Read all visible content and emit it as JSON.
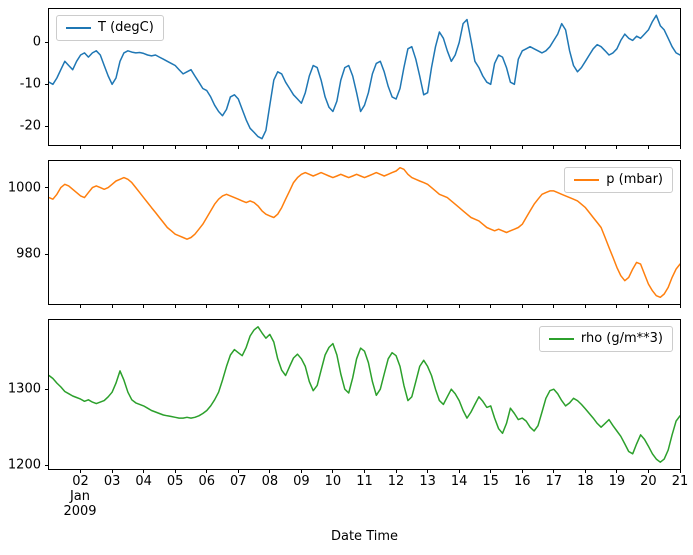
{
  "figure": {
    "xlabel": "Date Time",
    "background_color": "#ffffff",
    "spine_color": "#000000",
    "x_offset_label": [
      "Jan",
      "2009"
    ],
    "x_tick_positions": [
      1,
      2,
      3,
      4,
      5,
      6,
      7,
      8,
      9,
      10,
      11,
      12,
      13,
      14,
      15,
      16,
      17,
      18,
      19,
      20
    ],
    "x_tick_labels": [
      "02",
      "03",
      "04",
      "05",
      "06",
      "07",
      "08",
      "09",
      "10",
      "11",
      "12",
      "13",
      "14",
      "15",
      "16",
      "17",
      "18",
      "19",
      "20",
      "21"
    ]
  },
  "chart_data": [
    {
      "type": "line",
      "title": "",
      "xlim": [
        0,
        20
      ],
      "ylim": [
        -24.5,
        8
      ],
      "yticks": [
        0,
        -10,
        -20
      ],
      "grid": false,
      "legend_position": "upper left",
      "series": [
        {
          "name": "T (degC)",
          "color": "#1f77b4",
          "values": [
            -9.5,
            -10,
            -8.5,
            -6.5,
            -4.5,
            -5.5,
            -6.5,
            -4.5,
            -3,
            -2.5,
            -3.5,
            -2.5,
            -2,
            -3,
            -5.5,
            -8,
            -10,
            -8.5,
            -4.5,
            -2.5,
            -2,
            -2.3,
            -2.5,
            -2.4,
            -2.6,
            -3,
            -3.2,
            -3,
            -3.5,
            -4,
            -4.5,
            -5,
            -5.5,
            -6.5,
            -7.5,
            -7,
            -6.5,
            -8,
            -9.5,
            -11,
            -11.5,
            -13,
            -15,
            -16.5,
            -17.5,
            -16,
            -13,
            -12.5,
            -13.5,
            -16,
            -18.5,
            -20.5,
            -21.5,
            -22.5,
            -23,
            -21,
            -15,
            -9,
            -7,
            -7.5,
            -9.5,
            -11,
            -12.5,
            -13.5,
            -14.5,
            -12,
            -8,
            -5.5,
            -6,
            -9,
            -13,
            -15.5,
            -16.5,
            -14,
            -9,
            -6,
            -5.5,
            -8,
            -12,
            -16.5,
            -15,
            -12,
            -7.5,
            -5,
            -4.5,
            -7,
            -10.5,
            -13,
            -13.5,
            -11,
            -6,
            -1.5,
            -1,
            -4,
            -8,
            -12.5,
            -12,
            -6,
            -1,
            2.5,
            1,
            -2,
            -4.5,
            -3,
            0,
            4.5,
            5.5,
            0.5,
            -4.5,
            -6,
            -8,
            -9.5,
            -10,
            -5,
            -3,
            -3.5,
            -6,
            -9.5,
            -10,
            -4,
            -2,
            -1.5,
            -1,
            -1.5,
            -2,
            -2.5,
            -2,
            -1,
            0.5,
            2,
            4.5,
            3,
            -2,
            -5.5,
            -7,
            -6,
            -4.5,
            -3,
            -1.5,
            -0.5,
            -1,
            -2,
            -3,
            -2.5,
            -1.5,
            0.5,
            2,
            1,
            0.5,
            1.5,
            1,
            2,
            3,
            5,
            6.5,
            4,
            3,
            1,
            -1,
            -2.5,
            -3
          ]
        }
      ]
    },
    {
      "type": "line",
      "title": "",
      "xlim": [
        0,
        20
      ],
      "ylim": [
        965,
        1008
      ],
      "yticks": [
        1000,
        980
      ],
      "grid": false,
      "legend_position": "upper right",
      "series": [
        {
          "name": "p (mbar)",
          "color": "#ff7f0e",
          "values": [
            997,
            996.5,
            998,
            1000,
            1001,
            1000.5,
            999.5,
            998.5,
            997.5,
            997,
            998.5,
            1000,
            1000.5,
            1000,
            999.5,
            1000,
            1001,
            1002,
            1002.5,
            1003,
            1002.5,
            1001.5,
            1000,
            998.5,
            997,
            995.5,
            994,
            992.5,
            991,
            989.5,
            988,
            987,
            986,
            985.5,
            985,
            984.5,
            985,
            986,
            987.5,
            989,
            991,
            993,
            995,
            996.5,
            997.5,
            998,
            997.5,
            997,
            996.5,
            996,
            995.5,
            996,
            995.5,
            994.5,
            993,
            992,
            991.5,
            991,
            992,
            994,
            996.5,
            999,
            1001.5,
            1003,
            1004,
            1004.5,
            1004,
            1003.5,
            1004,
            1004.5,
            1004,
            1003.5,
            1003,
            1003.5,
            1004,
            1003.5,
            1003,
            1003.5,
            1004,
            1003.5,
            1003,
            1003.5,
            1004,
            1004.5,
            1004,
            1003.5,
            1004,
            1004.5,
            1005,
            1006,
            1005.5,
            1004,
            1003,
            1002.5,
            1002,
            1001.5,
            1001,
            1000,
            999,
            998,
            997.5,
            997,
            996,
            995,
            994,
            993,
            992,
            991,
            990.5,
            990,
            989,
            988,
            987.5,
            987,
            987.5,
            987,
            986.5,
            987,
            987.5,
            988,
            989,
            991,
            993,
            995,
            996.5,
            998,
            998.5,
            999,
            999,
            998.5,
            998,
            997.5,
            997,
            996.5,
            996,
            995,
            994,
            992.5,
            991,
            989.5,
            988,
            985,
            982,
            979,
            976,
            973.5,
            972,
            973,
            975.5,
            977.5,
            977,
            974,
            971,
            969,
            967.5,
            967,
            968,
            970,
            973,
            975.5,
            977
          ]
        }
      ]
    },
    {
      "type": "line",
      "title": "",
      "xlim": [
        0,
        20
      ],
      "ylim": [
        1195,
        1391
      ],
      "yticks": [
        1300,
        1200
      ],
      "grid": false,
      "legend_position": "upper right",
      "series": [
        {
          "name": "rho (g/m**3)",
          "color": "#2ca02c",
          "values": [
            1318,
            1314,
            1308,
            1303,
            1297,
            1294,
            1291,
            1289,
            1287,
            1284,
            1286,
            1283,
            1281,
            1283,
            1285,
            1290,
            1296,
            1308,
            1324,
            1312,
            1296,
            1286,
            1282,
            1280,
            1278,
            1275,
            1272,
            1270,
            1268,
            1266,
            1265,
            1264,
            1263,
            1262,
            1262,
            1263,
            1262,
            1263,
            1265,
            1268,
            1272,
            1278,
            1286,
            1296,
            1312,
            1330,
            1345,
            1352,
            1348,
            1344,
            1355,
            1370,
            1378,
            1382,
            1374,
            1367,
            1372,
            1362,
            1340,
            1325,
            1318,
            1330,
            1341,
            1346,
            1340,
            1330,
            1310,
            1298,
            1305,
            1325,
            1345,
            1355,
            1360,
            1345,
            1320,
            1300,
            1295,
            1315,
            1340,
            1354,
            1350,
            1335,
            1310,
            1292,
            1300,
            1320,
            1340,
            1348,
            1344,
            1330,
            1305,
            1285,
            1290,
            1310,
            1330,
            1338,
            1330,
            1318,
            1300,
            1285,
            1280,
            1290,
            1300,
            1294,
            1285,
            1272,
            1262,
            1270,
            1280,
            1290,
            1284,
            1276,
            1278,
            1262,
            1248,
            1242,
            1255,
            1275,
            1268,
            1260,
            1262,
            1258,
            1250,
            1245,
            1252,
            1270,
            1288,
            1298,
            1300,
            1294,
            1285,
            1278,
            1282,
            1288,
            1285,
            1280,
            1274,
            1268,
            1262,
            1255,
            1250,
            1255,
            1260,
            1252,
            1245,
            1238,
            1228,
            1218,
            1215,
            1228,
            1240,
            1234,
            1225,
            1215,
            1208,
            1204,
            1208,
            1220,
            1240,
            1258,
            1265
          ]
        }
      ]
    }
  ]
}
